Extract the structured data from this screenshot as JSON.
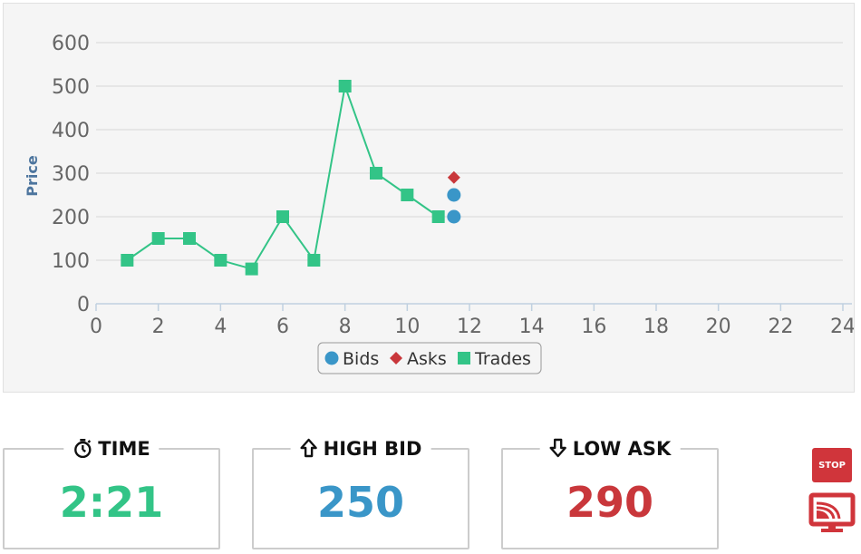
{
  "chart_data": {
    "type": "scatter",
    "ylabel": "Price",
    "xlim": [
      0,
      24
    ],
    "ylim": [
      0,
      600
    ],
    "x_ticks": [
      0,
      2,
      4,
      6,
      8,
      10,
      12,
      14,
      16,
      18,
      20,
      22,
      24
    ],
    "y_ticks": [
      0,
      100,
      200,
      300,
      400,
      500,
      600
    ],
    "grid": true,
    "legend_position": "bottom-center",
    "series": [
      {
        "name": "Bids",
        "marker": "circle",
        "color": "#3a96c8",
        "line": false,
        "points": [
          [
            11.5,
            250
          ],
          [
            11.5,
            200
          ]
        ]
      },
      {
        "name": "Asks",
        "marker": "diamond",
        "color": "#c9373b",
        "line": false,
        "points": [
          [
            11.5,
            290
          ]
        ]
      },
      {
        "name": "Trades",
        "marker": "square",
        "color": "#33c487",
        "line": true,
        "points": [
          [
            1,
            100
          ],
          [
            2,
            150
          ],
          [
            3,
            150
          ],
          [
            4,
            100
          ],
          [
            5,
            80
          ],
          [
            6,
            200
          ],
          [
            7,
            100
          ],
          [
            8,
            500
          ],
          [
            9,
            300
          ],
          [
            10,
            250
          ],
          [
            11,
            200
          ]
        ]
      }
    ]
  },
  "stats": {
    "time": {
      "label": "TIME",
      "value": "2:21",
      "icon": "stopwatch-icon",
      "color": "#33c487"
    },
    "high_bid": {
      "label": "HIGH BID",
      "value": "250",
      "icon": "arrow-up-icon",
      "color": "#3a96c8"
    },
    "low_ask": {
      "label": "LOW ASK",
      "value": "290",
      "icon": "arrow-down-icon",
      "color": "#c9373b"
    }
  },
  "controls": {
    "stop_label": "STOP",
    "screen_icon": "screen-share-icon",
    "accent_color": "#d0353b"
  }
}
